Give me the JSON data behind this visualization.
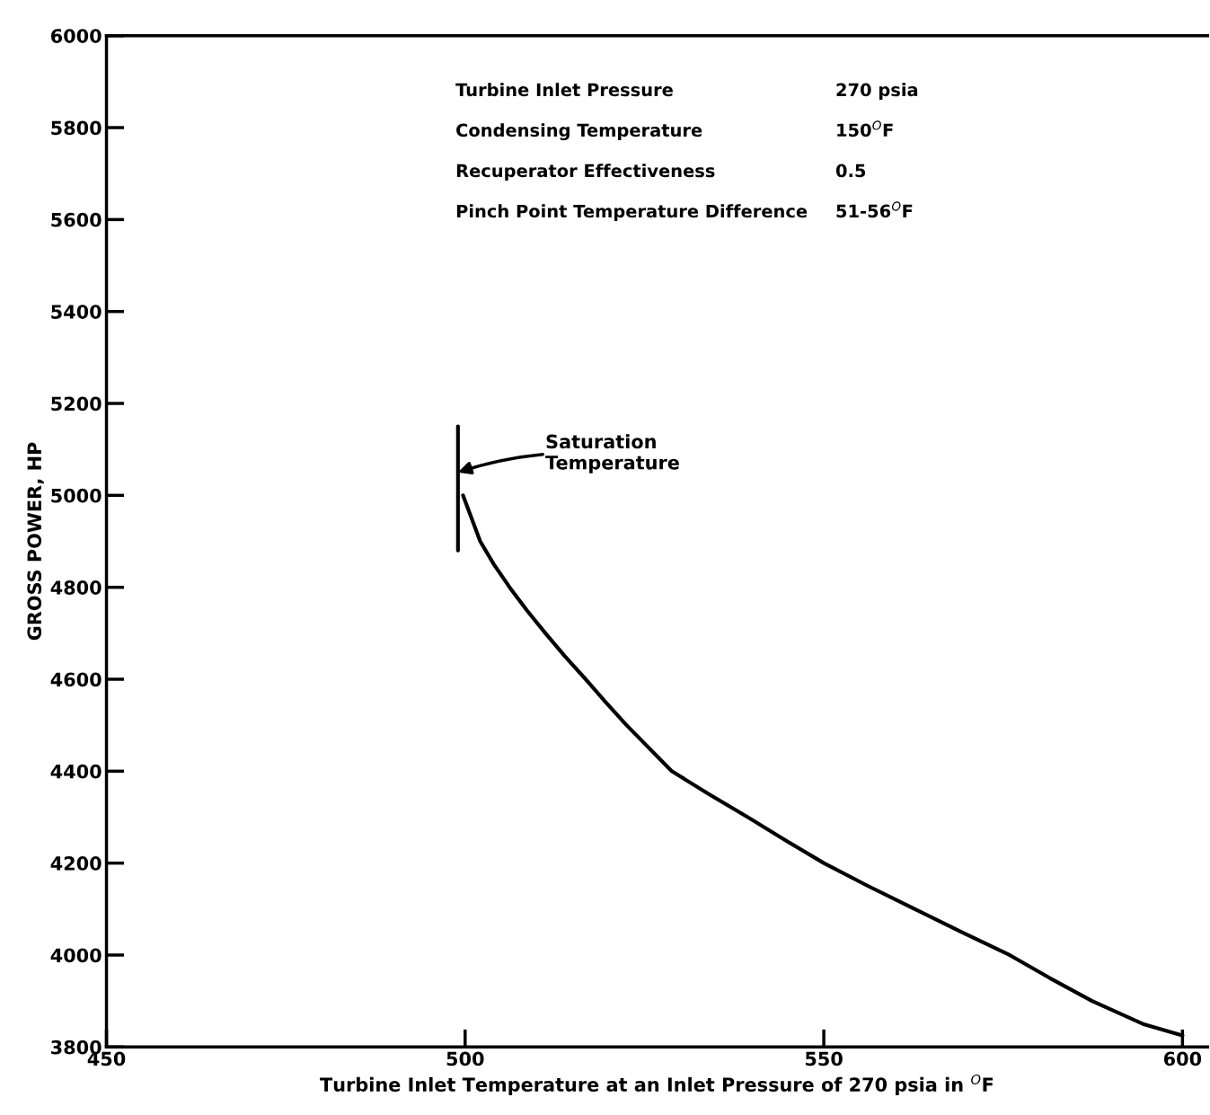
{
  "chart_data": {
    "type": "line",
    "xlabel": "Turbine Inlet Temperature at an Inlet Pressure of 270 psia in $^{O}$F",
    "ylabel": "GROSS POWER, HP",
    "xlim": [
      450,
      603.5
    ],
    "xticks": [
      450,
      500,
      550,
      600
    ],
    "ylim": [
      3800,
      6000
    ],
    "yticks": [
      3800,
      4000,
      4200,
      4400,
      4600,
      4800,
      5000,
      5200,
      5400,
      5600,
      5800,
      6000
    ],
    "grid": false,
    "legend": false,
    "marker": "none",
    "line_style": "solid",
    "series": [
      {
        "color": "#000000",
        "x": [
          499.7,
          502.1,
          504.0,
          506.2,
          508.6,
          511.2,
          513.9,
          516.8,
          519.6,
          522.5,
          528.8,
          534.0,
          539.4,
          544.6,
          550,
          556.2,
          562.7,
          569.2,
          575.9,
          581.5,
          587.4,
          594.5,
          600
        ],
        "values": [
          5000,
          4900,
          4850,
          4800,
          4750,
          4700,
          4650,
          4600,
          4550,
          4500,
          4400,
          4350,
          4300,
          4250,
          4200,
          4150,
          4100,
          4050,
          4000,
          3950,
          3900,
          3850,
          3825
        ]
      },
      {
        "color": "#000000",
        "x": [
          499,
          499
        ],
        "values": [
          5150,
          4880
        ]
      }
    ],
    "annotations": [
      "Turbine Inlet Pressure",
      "270 psia",
      "Condensing Temperature",
      "150$^{O}$F",
      "Recuperator Effectiveness",
      "0.5",
      "Pinch Point Temperature Difference",
      "51-56$^{O}$F",
      {
        "text": "Saturation\nTemperature",
        "x": 499,
        "y": 5050
      }
    ]
  }
}
